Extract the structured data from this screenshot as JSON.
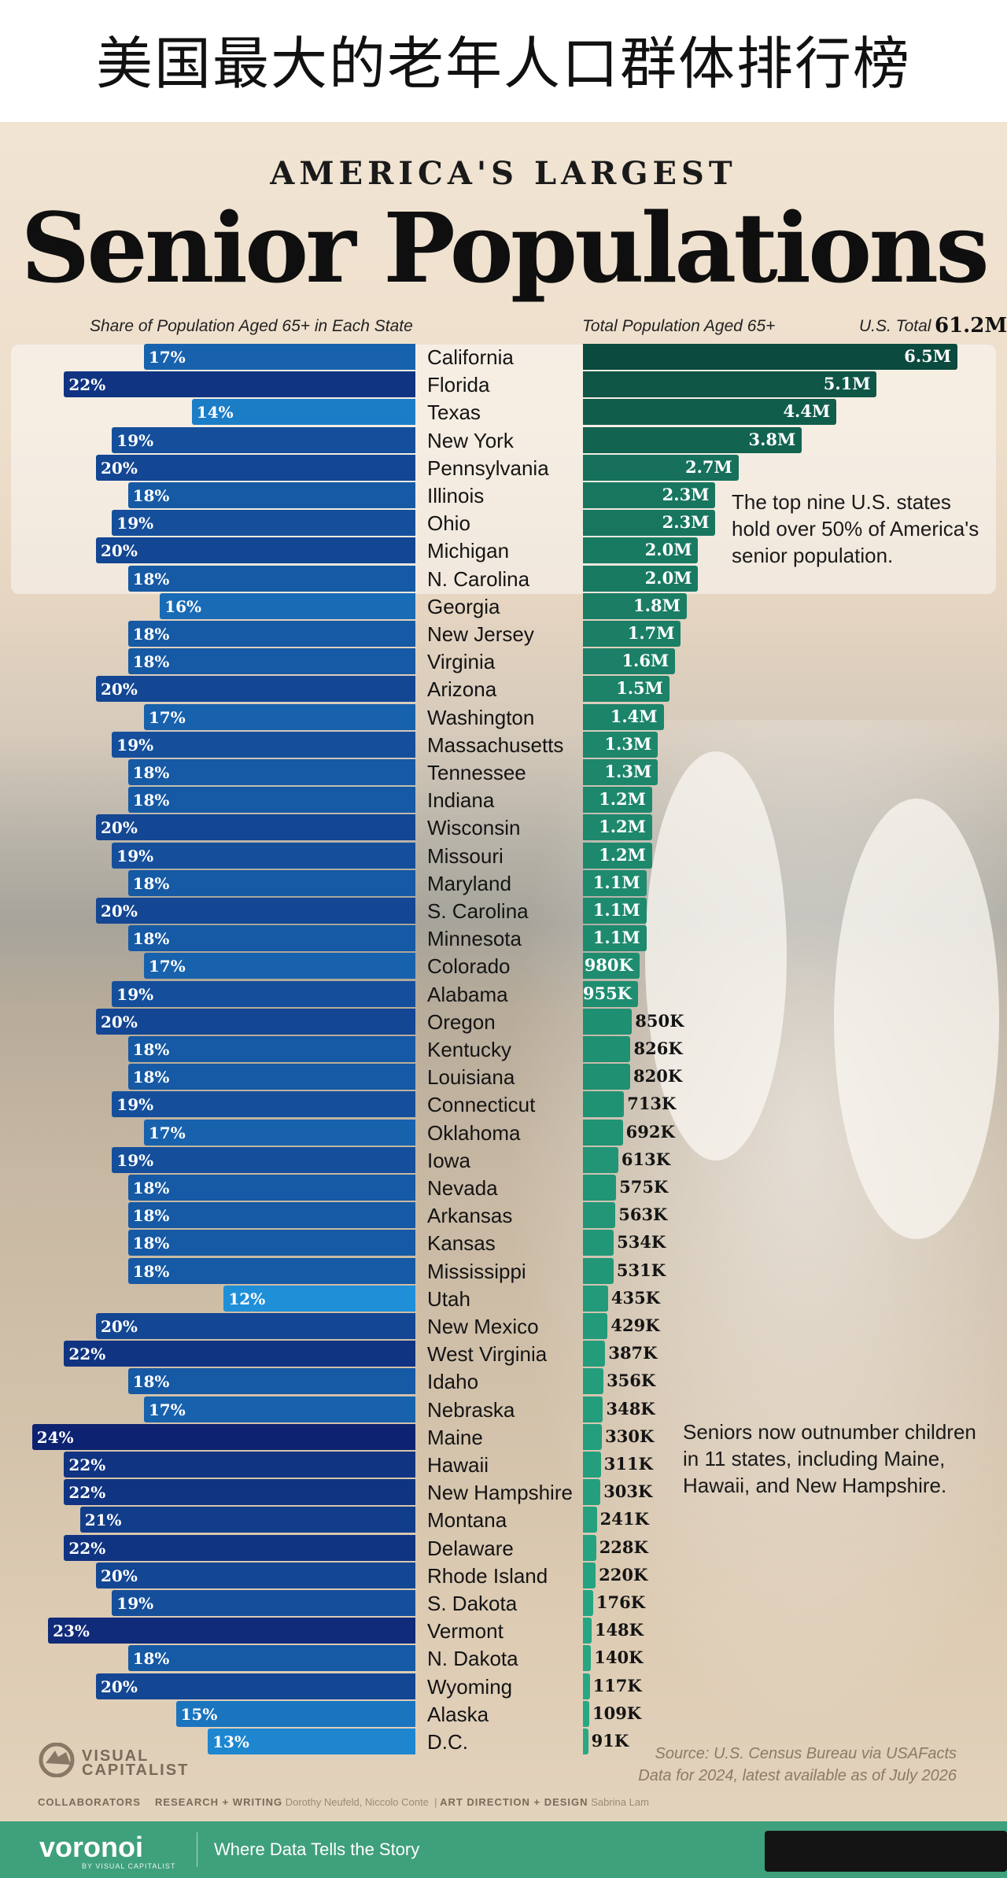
{
  "header": {
    "cn_title": "美国最大的老年人口群体排行榜"
  },
  "poster": {
    "supertitle": "AMERICA'S LARGEST",
    "title": "Senior Populations",
    "left_heading": "Share of Population Aged 65+ in Each State",
    "right_heading": "Total Population Aged 65+",
    "us_total_label": "U.S. Total",
    "us_total_value": "61.2M",
    "note_top": [
      "The top nine U.S. states",
      "hold over 50% of America's",
      "senior population."
    ],
    "note_mid": [
      "Seniors now outnumber children",
      "in 11 states, including Maine,",
      "Hawaii, and New Hampshire."
    ],
    "brand_line1": "VISUAL",
    "brand_line2": "CAPITALIST",
    "source_line1": "Source: U.S. Census Bureau via USAFacts",
    "source_line2": "Data for 2024, latest available as of July 2026",
    "credits": {
      "collaborators": "COLLABORATORS",
      "research_label": "RESEARCH + WRITING",
      "research_names": "Dorothy Neufeld, Niccolo Conte",
      "art_label": "ART DIRECTION + DESIGN",
      "art_names": "Sabrina Lam"
    }
  },
  "footer": {
    "brand": "voronoi",
    "brand_sub": "BY VISUAL CAPITALIST",
    "tagline": "Where Data Tells the Story"
  },
  "colors": {
    "share_min": "#1f8fd8",
    "share_max": "#0d2270",
    "total_min": "#2bb68f",
    "total_max": "#0b4a3e"
  },
  "chart_data": {
    "type": "bar",
    "title": "Senior Populations",
    "categories": [
      "California",
      "Florida",
      "Texas",
      "New York",
      "Pennsylvania",
      "Illinois",
      "Ohio",
      "Michigan",
      "N. Carolina",
      "Georgia",
      "New Jersey",
      "Virginia",
      "Arizona",
      "Washington",
      "Massachusetts",
      "Tennessee",
      "Indiana",
      "Wisconsin",
      "Missouri",
      "Maryland",
      "S. Carolina",
      "Minnesota",
      "Colorado",
      "Alabama",
      "Oregon",
      "Kentucky",
      "Louisiana",
      "Connecticut",
      "Oklahoma",
      "Iowa",
      "Nevada",
      "Arkansas",
      "Kansas",
      "Mississippi",
      "Utah",
      "New Mexico",
      "West Virginia",
      "Idaho",
      "Nebraska",
      "Maine",
      "Hawaii",
      "New Hampshire",
      "Montana",
      "Delaware",
      "Rhode Island",
      "S. Dakota",
      "Vermont",
      "N. Dakota",
      "Wyoming",
      "Alaska",
      "D.C."
    ],
    "series": [
      {
        "name": "Share of Population Aged 65+ in Each State",
        "unit": "%",
        "values": [
          17,
          22,
          14,
          19,
          20,
          18,
          19,
          20,
          18,
          16,
          18,
          18,
          20,
          17,
          19,
          18,
          18,
          20,
          19,
          18,
          20,
          18,
          17,
          19,
          20,
          18,
          18,
          19,
          17,
          19,
          18,
          18,
          18,
          18,
          12,
          20,
          22,
          18,
          17,
          24,
          22,
          22,
          21,
          22,
          20,
          19,
          23,
          18,
          20,
          15,
          13
        ],
        "labels": [
          "17%",
          "22%",
          "14%",
          "19%",
          "20%",
          "18%",
          "19%",
          "20%",
          "18%",
          "16%",
          "18%",
          "18%",
          "20%",
          "17%",
          "19%",
          "18%",
          "18%",
          "20%",
          "19%",
          "18%",
          "20%",
          "18%",
          "17%",
          "19%",
          "20%",
          "18%",
          "18%",
          "19%",
          "17%",
          "19%",
          "18%",
          "18%",
          "18%",
          "18%",
          "12%",
          "20%",
          "22%",
          "18%",
          "17%",
          "24%",
          "22%",
          "22%",
          "21%",
          "22%",
          "20%",
          "19%",
          "23%",
          "18%",
          "20%",
          "15%",
          "13%"
        ]
      },
      {
        "name": "Total Population Aged 65+",
        "values": [
          6500000,
          5100000,
          4400000,
          3800000,
          2700000,
          2300000,
          2300000,
          2000000,
          2000000,
          1800000,
          1700000,
          1600000,
          1500000,
          1400000,
          1300000,
          1300000,
          1200000,
          1200000,
          1200000,
          1100000,
          1100000,
          1100000,
          980000,
          955000,
          850000,
          826000,
          820000,
          713000,
          692000,
          613000,
          575000,
          563000,
          534000,
          531000,
          435000,
          429000,
          387000,
          356000,
          348000,
          330000,
          311000,
          303000,
          241000,
          228000,
          220000,
          176000,
          148000,
          140000,
          117000,
          109000,
          91000
        ],
        "labels": [
          "6.5M",
          "5.1M",
          "4.4M",
          "3.8M",
          "2.7M",
          "2.3M",
          "2.3M",
          "2.0M",
          "2.0M",
          "1.8M",
          "1.7M",
          "1.6M",
          "1.5M",
          "1.4M",
          "1.3M",
          "1.3M",
          "1.2M",
          "1.2M",
          "1.2M",
          "1.1M",
          "1.1M",
          "1.1M",
          "980K",
          "955K",
          "850K",
          "826K",
          "820K",
          "713K",
          "692K",
          "613K",
          "575K",
          "563K",
          "534K",
          "531K",
          "435K",
          "429K",
          "387K",
          "356K",
          "348K",
          "330K",
          "311K",
          "303K",
          "241K",
          "228K",
          "220K",
          "176K",
          "148K",
          "140K",
          "117K",
          "109K",
          "91K"
        ]
      }
    ]
  }
}
